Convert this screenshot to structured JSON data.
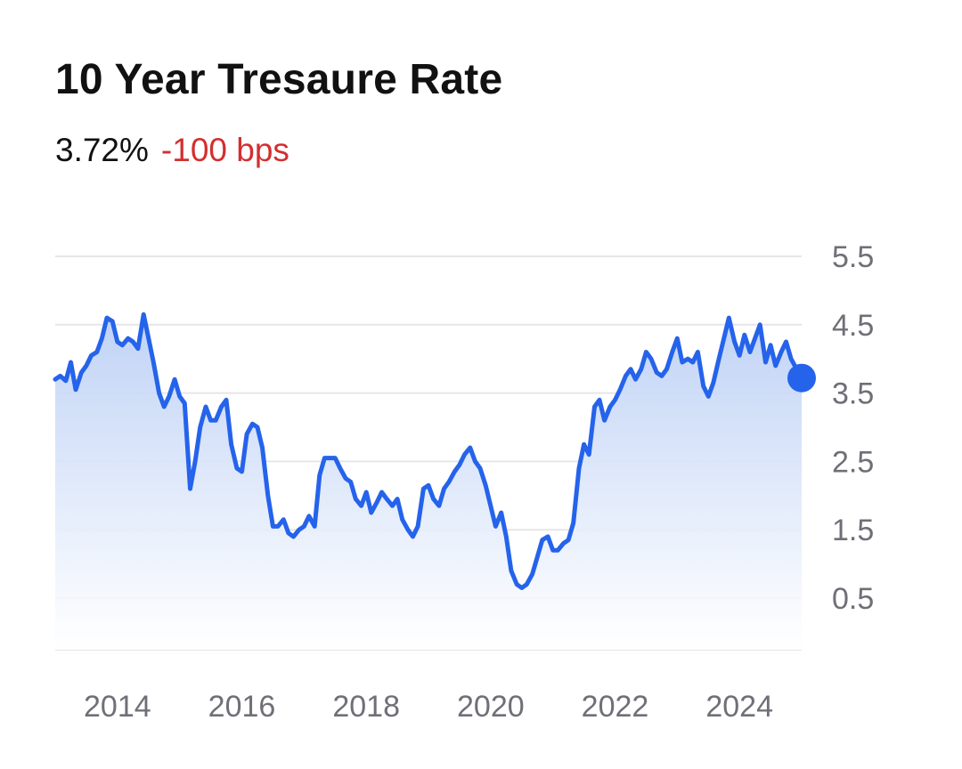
{
  "header": {
    "title": "10 Year Tresaure Rate",
    "price": "3.72%",
    "change": "-100 bps"
  },
  "colors": {
    "line": "#2563eb",
    "area_top": "#bcd0f5",
    "change_negative": "#d32f2f",
    "grid": "#e6e6ea",
    "tick_text": "#6f6f78"
  },
  "chart_data": {
    "type": "area",
    "title": "10 Year Tresaure Rate",
    "xlabel": "",
    "ylabel": "",
    "grid": true,
    "y_axis_side": "right",
    "ylim": [
      -0.5,
      6
    ],
    "yticks": [
      "5.5",
      "4.5",
      "3.5",
      "2.5",
      "1.5",
      "0.5"
    ],
    "xticks": [
      "2014",
      "2016",
      "2018",
      "2020",
      "2022",
      "2024"
    ],
    "xlim": [
      2013.0,
      2025.0
    ],
    "series": [
      {
        "x": [
          2013.0,
          2013.08,
          2013.17,
          2013.25,
          2013.33,
          2013.42,
          2013.5,
          2013.58,
          2013.67,
          2013.75,
          2013.83,
          2013.92,
          2014.0,
          2014.08,
          2014.17,
          2014.25,
          2014.33,
          2014.42,
          2014.5,
          2014.58,
          2014.67,
          2014.75,
          2014.83,
          2014.92,
          2015.0,
          2015.08,
          2015.17,
          2015.25,
          2015.33,
          2015.42,
          2015.5,
          2015.58,
          2015.67,
          2015.75,
          2015.83,
          2015.92,
          2016.0,
          2016.08,
          2016.17,
          2016.25,
          2016.33,
          2016.42,
          2016.5,
          2016.58,
          2016.67,
          2016.75,
          2016.83,
          2016.92,
          2017.0,
          2017.08,
          2017.17,
          2017.25,
          2017.33,
          2017.42,
          2017.5,
          2017.58,
          2017.67,
          2017.75,
          2017.83,
          2017.92,
          2018.0,
          2018.08,
          2018.17,
          2018.25,
          2018.33,
          2018.42,
          2018.5,
          2018.58,
          2018.67,
          2018.75,
          2018.83,
          2018.92,
          2019.0,
          2019.08,
          2019.17,
          2019.25,
          2019.33,
          2019.42,
          2019.5,
          2019.58,
          2019.67,
          2019.75,
          2019.83,
          2019.92,
          2020.0,
          2020.08,
          2020.17,
          2020.25,
          2020.33,
          2020.42,
          2020.5,
          2020.58,
          2020.67,
          2020.75,
          2020.83,
          2020.92,
          2021.0,
          2021.08,
          2021.17,
          2021.25,
          2021.33,
          2021.42,
          2021.5,
          2021.58,
          2021.67,
          2021.75,
          2021.83,
          2021.92,
          2022.0,
          2022.08,
          2022.17,
          2022.25,
          2022.33,
          2022.42,
          2022.5,
          2022.58,
          2022.67,
          2022.75,
          2022.83,
          2022.92,
          2023.0,
          2023.08,
          2023.17,
          2023.25,
          2023.33,
          2023.42,
          2023.5,
          2023.58,
          2023.67,
          2023.75,
          2023.83,
          2023.92,
          2024.0,
          2024.08,
          2024.17,
          2024.25,
          2024.33,
          2024.42,
          2024.5,
          2024.58,
          2024.67,
          2024.75,
          2024.83,
          2024.92,
          2025.0
        ],
        "values": [
          3.7,
          3.75,
          3.68,
          3.95,
          3.55,
          3.8,
          3.9,
          4.05,
          4.1,
          4.3,
          4.6,
          4.55,
          4.25,
          4.2,
          4.3,
          4.25,
          4.15,
          4.65,
          4.3,
          3.95,
          3.5,
          3.3,
          3.45,
          3.7,
          3.45,
          3.35,
          2.1,
          2.5,
          3.0,
          3.3,
          3.1,
          3.1,
          3.3,
          3.4,
          2.75,
          2.4,
          2.35,
          2.9,
          3.05,
          3.0,
          2.7,
          2.0,
          1.55,
          1.55,
          1.65,
          1.45,
          1.4,
          1.5,
          1.55,
          1.7,
          1.55,
          2.3,
          2.55,
          2.55,
          2.55,
          2.4,
          2.25,
          2.2,
          1.95,
          1.85,
          2.05,
          1.75,
          1.9,
          2.05,
          1.95,
          1.85,
          1.95,
          1.65,
          1.5,
          1.4,
          1.55,
          2.1,
          2.15,
          1.95,
          1.85,
          2.1,
          2.2,
          2.35,
          2.45,
          2.6,
          2.7,
          2.5,
          2.4,
          2.15,
          1.85,
          1.55,
          1.75,
          1.4,
          0.9,
          0.7,
          0.65,
          0.7,
          0.85,
          1.1,
          1.35,
          1.4,
          1.2,
          1.2,
          1.3,
          1.35,
          1.6,
          2.4,
          2.75,
          2.6,
          3.3,
          3.4,
          3.1,
          3.3,
          3.4,
          3.55,
          3.75,
          3.85,
          3.7,
          3.85,
          4.1,
          4.0,
          3.8,
          3.75,
          3.85,
          4.1,
          4.3,
          3.95,
          4.0,
          3.95,
          4.1,
          3.6,
          3.45,
          3.65,
          4.0,
          4.3,
          4.6,
          4.25,
          4.05,
          4.35,
          4.1,
          4.3,
          4.5,
          3.95,
          4.2,
          3.9,
          4.1,
          4.25,
          4.0,
          3.85,
          3.72
        ]
      }
    ]
  }
}
